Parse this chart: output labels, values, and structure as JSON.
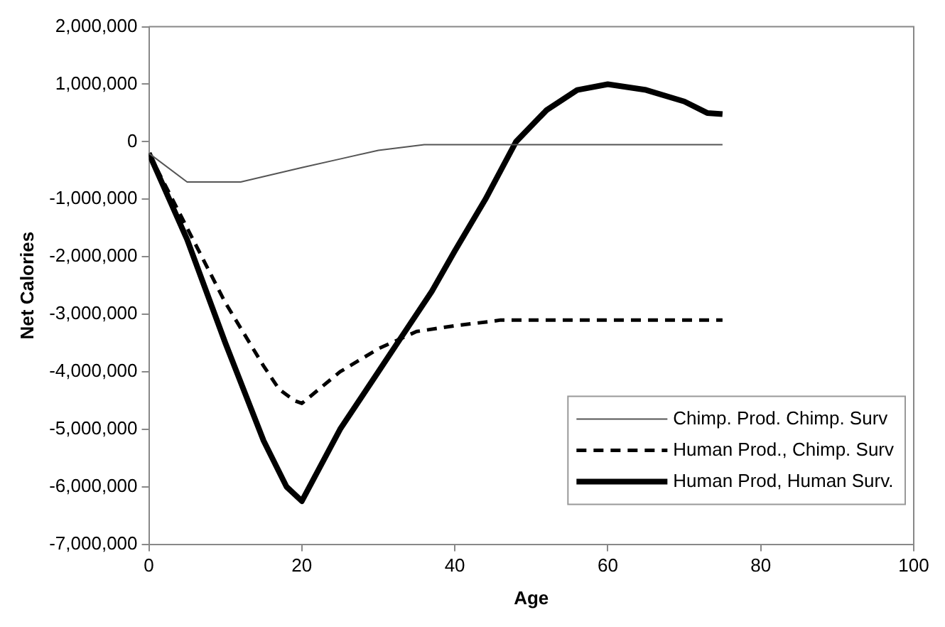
{
  "chart_data": {
    "type": "line",
    "xlabel": "Age",
    "ylabel": "Net Calories",
    "xlim": [
      0,
      100
    ],
    "xticks": [
      0,
      20,
      40,
      60,
      80,
      100
    ],
    "ylim": [
      -7000000,
      2000000
    ],
    "yticks": [
      {
        "value": -7000000,
        "label": "-7,000,000"
      },
      {
        "value": -6000000,
        "label": "-6,000,000"
      },
      {
        "value": -5000000,
        "label": "-5,000,000"
      },
      {
        "value": -4000000,
        "label": "-4,000,000"
      },
      {
        "value": -3000000,
        "label": "-3,000,000"
      },
      {
        "value": -2000000,
        "label": "-2,000,000"
      },
      {
        "value": -1000000,
        "label": "-1,000,000"
      },
      0,
      {
        "value": 1000000,
        "label": "1,000,000"
      },
      {
        "value": 2000000,
        "label": "2,000,000"
      }
    ],
    "grid": false,
    "legend": "bottom right",
    "marker": "none",
    "series": [
      {
        "name": "Chimp. Prod. Chimp. Surv",
        "color": "#555555",
        "line_style": "solid",
        "x": [
          0,
          5,
          12,
          20,
          25,
          30,
          36,
          75
        ],
        "values": [
          -200000,
          -700000,
          -700000,
          -450000,
          -300000,
          -150000,
          -50000,
          -50000
        ]
      },
      {
        "name": "Human Prod., Chimp. Surv",
        "color": "#000000",
        "line_style": "dashed",
        "x": [
          0,
          5,
          10,
          15,
          17,
          19,
          20,
          25,
          30,
          35,
          40,
          45,
          46,
          75
        ],
        "values": [
          -200000,
          -1500000,
          -2800000,
          -3900000,
          -4300000,
          -4500000,
          -4550000,
          -4000000,
          -3600000,
          -3300000,
          -3200000,
          -3120000,
          -3100000,
          -3100000
        ]
      },
      {
        "name": "Human Prod, Human Surv.",
        "color": "#000000",
        "line_style": "solid",
        "x": [
          0,
          5,
          10,
          15,
          18,
          20,
          25,
          30,
          33,
          37,
          40,
          44,
          48,
          52,
          56,
          60,
          65,
          70,
          73,
          75
        ],
        "values": [
          -200000,
          -1700000,
          -3500000,
          -5200000,
          -6000000,
          -6250000,
          -5000000,
          -4000000,
          -3400000,
          -2600000,
          -1900000,
          -1000000,
          0,
          550000,
          900000,
          1000000,
          900000,
          700000,
          500000,
          480000
        ]
      }
    ]
  }
}
